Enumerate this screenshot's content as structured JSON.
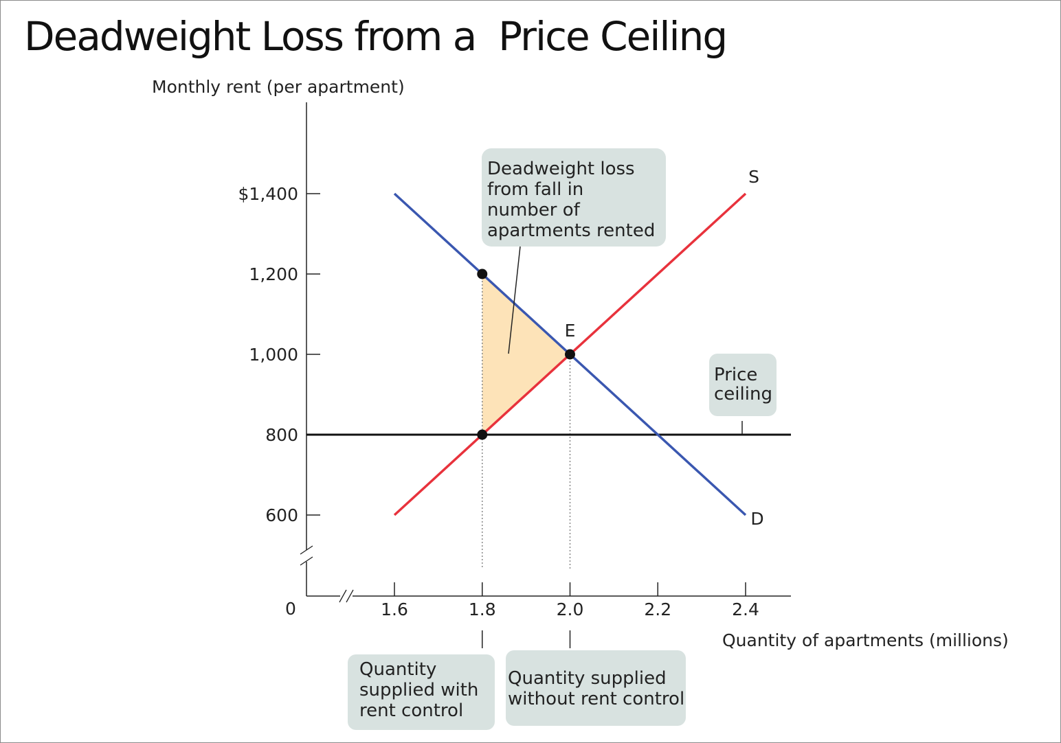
{
  "chart_data": {
    "type": "line",
    "title": "Deadweight Loss from a  Price Ceiling",
    "ylabel": "Monthly rent (per apartment)",
    "xlabel": "Quantity of apartments (millions)",
    "origin_label": "0",
    "xlim": [
      1.6,
      2.4
    ],
    "ylim": [
      600,
      1400
    ],
    "x_ticks": [
      {
        "value": 1.6,
        "label": "1.6"
      },
      {
        "value": 1.8,
        "label": "1.8"
      },
      {
        "value": 2.0,
        "label": "2.0"
      },
      {
        "value": 2.2,
        "label": "2.2"
      },
      {
        "value": 2.4,
        "label": "2.4"
      }
    ],
    "y_ticks": [
      {
        "value": 600,
        "label": "600"
      },
      {
        "value": 800,
        "label": "800"
      },
      {
        "value": 1000,
        "label": "1,000"
      },
      {
        "value": 1200,
        "label": "1,200"
      },
      {
        "value": 1400,
        "label": "$1,400"
      }
    ],
    "series": [
      {
        "name": "D",
        "color": "#3a57b0",
        "points": [
          [
            1.6,
            1400
          ],
          [
            2.4,
            600
          ]
        ]
      },
      {
        "name": "S",
        "color": "#e8323c",
        "points": [
          [
            1.6,
            600
          ],
          [
            2.4,
            1400
          ]
        ]
      }
    ],
    "price_ceiling": {
      "value": 800,
      "color": "#111111",
      "label": "Price\nceiling"
    },
    "equilibrium": {
      "label": "E",
      "x": 2.0,
      "y": 1000
    },
    "points": [
      {
        "x": 1.8,
        "y": 1200
      },
      {
        "x": 2.0,
        "y": 1000
      },
      {
        "x": 1.8,
        "y": 800
      }
    ],
    "deadweight_loss": {
      "color": "#fde3b8",
      "vertices": [
        [
          1.8,
          800
        ],
        [
          1.8,
          1200
        ],
        [
          2.0,
          1000
        ]
      ],
      "label": "Deadweight loss\nfrom fall in\nnumber of\napartments rented"
    },
    "annotations": [
      {
        "label": "Quantity\nsupplied with\nrent control",
        "x": 1.8
      },
      {
        "label": "Quantity supplied\nwithout rent control",
        "x": 2.0
      }
    ],
    "callout_color": "#d8e2e0"
  }
}
